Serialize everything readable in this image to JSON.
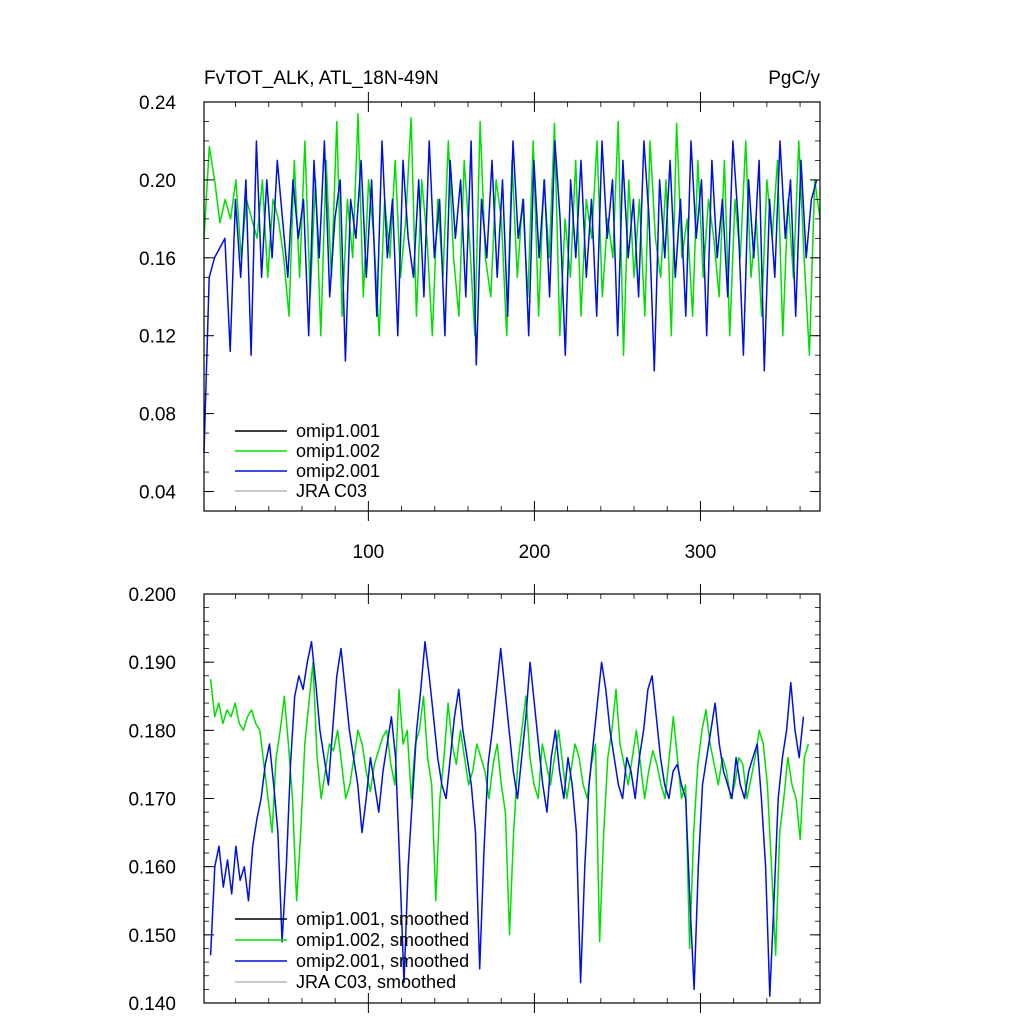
{
  "chart_data": [
    {
      "type": "line",
      "title": "FvTOT_ALK, ATL_18N-49N",
      "units": "PgC/y",
      "xlabel": "",
      "ylabel": "",
      "xlim": [
        1,
        372
      ],
      "ylim": [
        0.03,
        0.24
      ],
      "yticks": [
        "0.04",
        "0.08",
        "0.12",
        "0.16",
        "0.20",
        "0.24"
      ],
      "xticks": [
        "100",
        "200",
        "300"
      ],
      "grid": false,
      "legend_position": "bottom-left",
      "legend": [
        {
          "label": "omip1.001",
          "color": "#000000"
        },
        {
          "label": "omip1.002",
          "color": "#00e000"
        },
        {
          "label": "omip2.001",
          "color": "#0010e0"
        },
        {
          "label": "JRA C03",
          "color": "#b8b8b8"
        }
      ],
      "series": [
        {
          "name": "omip1.002",
          "color": "#00e000",
          "x_range": [
            1,
            372
          ],
          "summary": "monthly values oscillating ~0.11–0.234, mean ~0.175",
          "values": [
            0.17,
            0.217,
            0.2,
            0.178,
            0.19,
            0.18,
            0.2,
            0.16,
            0.19,
            0.18,
            0.17,
            0.2,
            0.15,
            0.19,
            0.18,
            0.16,
            0.13,
            0.21,
            0.15,
            0.22,
            0.14,
            0.2,
            0.12,
            0.21,
            0.15,
            0.23,
            0.13,
            0.19,
            0.16,
            0.234,
            0.14,
            0.2,
            0.17,
            0.12,
            0.19,
            0.16,
            0.21,
            0.15,
            0.18,
            0.232,
            0.13,
            0.2,
            0.17,
            0.12,
            0.19,
            0.15,
            0.22,
            0.16,
            0.13,
            0.21,
            0.17,
            0.12,
            0.23,
            0.16,
            0.14,
            0.2,
            0.18,
            0.12,
            0.21,
            0.15,
            0.19,
            0.14,
            0.22,
            0.13,
            0.2,
            0.16,
            0.229,
            0.12,
            0.18,
            0.15,
            0.21,
            0.13,
            0.19,
            0.17,
            0.22,
            0.14,
            0.18,
            0.16,
            0.23,
            0.11,
            0.2,
            0.15,
            0.19,
            0.13,
            0.22,
            0.17,
            0.15,
            0.2,
            0.12,
            0.229,
            0.16,
            0.18,
            0.13,
            0.21,
            0.15,
            0.19,
            0.17,
            0.14,
            0.21,
            0.12,
            0.19,
            0.16,
            0.22,
            0.15,
            0.18,
            0.13,
            0.2,
            0.17,
            0.21,
            0.12,
            0.19,
            0.15,
            0.22,
            0.16,
            0.11,
            0.2,
            0.18
          ]
        },
        {
          "name": "omip2.001",
          "color": "#0010e0",
          "x_range": [
            1,
            370
          ],
          "summary": "starts at 0.06, then monthly values oscillating ~0.10–0.223",
          "values": [
            0.06,
            0.15,
            0.16,
            0.165,
            0.17,
            0.112,
            0.19,
            0.15,
            0.2,
            0.11,
            0.22,
            0.15,
            0.2,
            0.16,
            0.21,
            0.18,
            0.15,
            0.2,
            0.17,
            0.19,
            0.12,
            0.21,
            0.16,
            0.22,
            0.14,
            0.18,
            0.2,
            0.107,
            0.19,
            0.17,
            0.21,
            0.15,
            0.2,
            0.13,
            0.22,
            0.16,
            0.19,
            0.12,
            0.21,
            0.17,
            0.15,
            0.2,
            0.14,
            0.22,
            0.16,
            0.19,
            0.12,
            0.21,
            0.17,
            0.2,
            0.14,
            0.22,
            0.105,
            0.19,
            0.16,
            0.21,
            0.15,
            0.2,
            0.13,
            0.22,
            0.17,
            0.19,
            0.12,
            0.21,
            0.16,
            0.2,
            0.14,
            0.22,
            0.18,
            0.11,
            0.2,
            0.16,
            0.21,
            0.15,
            0.19,
            0.13,
            0.22,
            0.17,
            0.2,
            0.12,
            0.21,
            0.16,
            0.19,
            0.14,
            0.22,
            0.18,
            0.102,
            0.2,
            0.16,
            0.21,
            0.15,
            0.19,
            0.13,
            0.22,
            0.17,
            0.2,
            0.12,
            0.21,
            0.16,
            0.19,
            0.14,
            0.22,
            0.18,
            0.11,
            0.2,
            0.16,
            0.21,
            0.102,
            0.19,
            0.15,
            0.22,
            0.17,
            0.2,
            0.13,
            0.21,
            0.16,
            0.19,
            0.2
          ]
        }
      ]
    },
    {
      "type": "line",
      "title": "",
      "xlabel": "",
      "ylabel": "",
      "xlim": [
        1,
        372
      ],
      "ylim": [
        0.14,
        0.2
      ],
      "yticks": [
        "0.140",
        "0.150",
        "0.160",
        "0.170",
        "0.180",
        "0.190",
        "0.200"
      ],
      "grid": false,
      "legend_position": "bottom-left",
      "legend": [
        {
          "label": "omip1.001, smoothed",
          "color": "#000000"
        },
        {
          "label": "omip1.002, smoothed",
          "color": "#00e000"
        },
        {
          "label": "omip2.001, smoothed",
          "color": "#0010e0"
        },
        {
          "label": "JRA C03, smoothed",
          "color": "#b8b8b8"
        }
      ],
      "series": [
        {
          "name": "omip1.002, smoothed",
          "color": "#00e000",
          "x_range": [
            5,
            365
          ],
          "summary": "~0.181–0.187 early, then ~0.170–0.189 with dips to ~0.147 near x≈345",
          "values": [
            0.1875,
            0.182,
            0.184,
            0.181,
            0.183,
            0.182,
            0.184,
            0.181,
            0.18,
            0.182,
            0.183,
            0.181,
            0.18,
            0.175,
            0.17,
            0.165,
            0.176,
            0.18,
            0.185,
            0.178,
            0.17,
            0.155,
            0.165,
            0.178,
            0.184,
            0.19,
            0.176,
            0.17,
            0.174,
            0.178,
            0.177,
            0.18,
            0.175,
            0.17,
            0.172,
            0.176,
            0.18,
            0.178,
            0.174,
            0.171,
            0.175,
            0.177,
            0.179,
            0.18,
            0.175,
            0.172,
            0.186,
            0.178,
            0.18,
            0.17,
            0.178,
            0.18,
            0.185,
            0.176,
            0.172,
            0.155,
            0.17,
            0.176,
            0.184,
            0.178,
            0.175,
            0.18,
            0.176,
            0.172,
            0.174,
            0.178,
            0.176,
            0.174,
            0.17,
            0.175,
            0.178,
            0.172,
            0.168,
            0.15,
            0.165,
            0.175,
            0.18,
            0.185,
            0.176,
            0.172,
            0.17,
            0.178,
            0.175,
            0.172,
            0.176,
            0.18,
            0.175,
            0.17,
            0.174,
            0.178,
            0.176,
            0.172,
            0.17,
            0.175,
            0.178,
            0.149,
            0.165,
            0.176,
            0.18,
            0.186,
            0.178,
            0.175,
            0.172,
            0.176,
            0.18,
            0.175,
            0.17,
            0.174,
            0.177,
            0.175,
            0.172,
            0.17,
            0.176,
            0.182,
            0.176,
            0.17,
            0.172,
            0.148,
            0.165,
            0.175,
            0.18,
            0.183,
            0.178,
            0.175,
            0.172,
            0.176,
            0.174,
            0.17,
            0.172,
            0.176,
            0.175,
            0.17,
            0.173,
            0.176,
            0.18,
            0.178,
            0.172,
            0.16,
            0.147,
            0.165,
            0.17,
            0.176,
            0.172,
            0.17,
            0.164,
            0.176,
            0.178
          ]
        },
        {
          "name": "omip2.001, smoothed",
          "color": "#0010e0",
          "x_range": [
            5,
            362
          ],
          "summary": "starts ~0.147–0.163, then ~0.17–0.193 with dips to ~0.141 near x≈342",
          "values": [
            0.147,
            0.16,
            0.163,
            0.157,
            0.161,
            0.156,
            0.163,
            0.158,
            0.16,
            0.155,
            0.163,
            0.167,
            0.17,
            0.175,
            0.178,
            0.172,
            0.165,
            0.149,
            0.16,
            0.175,
            0.185,
            0.188,
            0.186,
            0.19,
            0.193,
            0.187,
            0.18,
            0.176,
            0.172,
            0.18,
            0.188,
            0.192,
            0.186,
            0.18,
            0.176,
            0.172,
            0.165,
            0.17,
            0.176,
            0.172,
            0.168,
            0.174,
            0.178,
            0.182,
            0.176,
            0.16,
            0.143,
            0.16,
            0.17,
            0.18,
            0.186,
            0.193,
            0.188,
            0.182,
            0.176,
            0.172,
            0.17,
            0.176,
            0.182,
            0.186,
            0.18,
            0.176,
            0.172,
            0.165,
            0.145,
            0.162,
            0.175,
            0.18,
            0.186,
            0.192,
            0.186,
            0.18,
            0.174,
            0.17,
            0.176,
            0.182,
            0.19,
            0.184,
            0.178,
            0.172,
            0.168,
            0.176,
            0.18,
            0.174,
            0.17,
            0.176,
            0.172,
            0.165,
            0.143,
            0.16,
            0.172,
            0.178,
            0.184,
            0.19,
            0.186,
            0.18,
            0.176,
            0.172,
            0.17,
            0.176,
            0.174,
            0.17,
            0.176,
            0.18,
            0.186,
            0.188,
            0.182,
            0.176,
            0.172,
            0.17,
            0.174,
            0.175,
            0.172,
            0.17,
            0.155,
            0.142,
            0.16,
            0.172,
            0.176,
            0.18,
            0.184,
            0.178,
            0.174,
            0.172,
            0.17,
            0.176,
            0.172,
            0.17,
            0.174,
            0.176,
            0.178,
            0.17,
            0.16,
            0.141,
            0.155,
            0.17,
            0.176,
            0.18,
            0.187,
            0.18,
            0.176,
            0.182
          ]
        }
      ]
    }
  ],
  "colors": {
    "omip1_001": "#000000",
    "omip1_002": "#00e000",
    "omip2_001": "#0010e0",
    "jra_c03": "#b8b8b8",
    "axis": "#000000"
  }
}
